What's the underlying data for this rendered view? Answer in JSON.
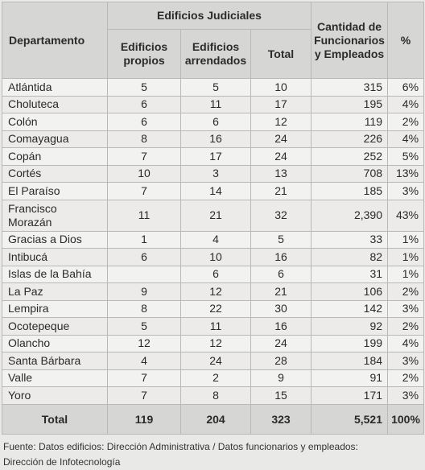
{
  "headers": {
    "department": "Departamento",
    "buildings_group": "Edificios Judiciales",
    "owned": "Edificios\npropios",
    "rented": "Edificios\narrendados",
    "total": "Total",
    "staff": "Cantidad de\nFuncionarios\ny Empleados",
    "percent": "%"
  },
  "rows": [
    {
      "name": "Atlántida",
      "owned": "5",
      "rented": "5",
      "total": "10",
      "staff": "315",
      "pct": "6%"
    },
    {
      "name": "Choluteca",
      "owned": "6",
      "rented": "11",
      "total": "17",
      "staff": "195",
      "pct": "4%"
    },
    {
      "name": "Colón",
      "owned": "6",
      "rented": "6",
      "total": "12",
      "staff": "119",
      "pct": "2%"
    },
    {
      "name": "Comayagua",
      "owned": "8",
      "rented": "16",
      "total": "24",
      "staff": "226",
      "pct": "4%"
    },
    {
      "name": "Copán",
      "owned": "7",
      "rented": "17",
      "total": "24",
      "staff": "252",
      "pct": "5%"
    },
    {
      "name": "Cortés",
      "owned": "10",
      "rented": "3",
      "total": "13",
      "staff": "708",
      "pct": "13%"
    },
    {
      "name": "El Paraíso",
      "owned": "7",
      "rented": "14",
      "total": "21",
      "staff": "185",
      "pct": "3%"
    },
    {
      "name": "Francisco\nMorazán",
      "owned": "11",
      "rented": "21",
      "total": "32",
      "staff": "2,390",
      "pct": "43%"
    },
    {
      "name": "Gracias a Dios",
      "owned": "1",
      "rented": "4",
      "total": "5",
      "staff": "33",
      "pct": "1%"
    },
    {
      "name": "Intibucá",
      "owned": "6",
      "rented": "10",
      "total": "16",
      "staff": "82",
      "pct": "1%"
    },
    {
      "name": "Islas de la Bahía",
      "owned": "",
      "rented": "6",
      "total": "6",
      "staff": "31",
      "pct": "1%"
    },
    {
      "name": "La Paz",
      "owned": "9",
      "rented": "12",
      "total": "21",
      "staff": "106",
      "pct": "2%"
    },
    {
      "name": "Lempira",
      "owned": "8",
      "rented": "22",
      "total": "30",
      "staff": "142",
      "pct": "3%"
    },
    {
      "name": "Ocotepeque",
      "owned": "5",
      "rented": "11",
      "total": "16",
      "staff": "92",
      "pct": "2%"
    },
    {
      "name": "Olancho",
      "owned": "12",
      "rented": "12",
      "total": "24",
      "staff": "199",
      "pct": "4%"
    },
    {
      "name": "Santa Bárbara",
      "owned": "4",
      "rented": "24",
      "total": "28",
      "staff": "184",
      "pct": "3%"
    },
    {
      "name": "Valle",
      "owned": "7",
      "rented": "2",
      "total": "9",
      "staff": "91",
      "pct": "2%"
    },
    {
      "name": "Yoro",
      "owned": "7",
      "rented": "8",
      "total": "15",
      "staff": "171",
      "pct": "3%"
    }
  ],
  "totals": {
    "label": "Total",
    "owned": "119",
    "rented": "204",
    "total": "323",
    "staff": "5,521",
    "pct": "100%"
  },
  "footnote": {
    "line1": "Fuente: Datos edificios: Dirección Administrativa / Datos funcionarios y empleados:",
    "line2": "Dirección de Infotecnología"
  }
}
